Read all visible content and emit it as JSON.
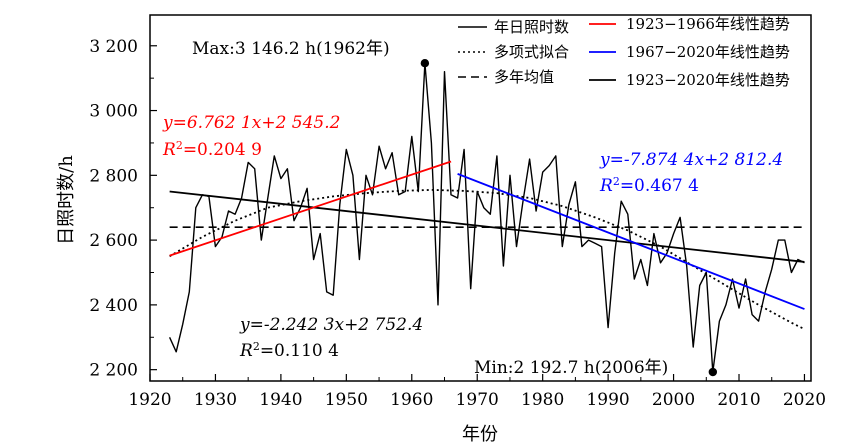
{
  "chart_data": {
    "type": "line",
    "xlabel": "年份",
    "ylabel": "日照时数/h",
    "xlim": [
      1920,
      2021
    ],
    "ylim": [
      2165,
      3295
    ],
    "x_ticks": [
      1920,
      1930,
      1940,
      1950,
      1960,
      1970,
      1980,
      1990,
      2000,
      2010,
      2020
    ],
    "x_tick_labels": [
      "1920",
      "1930",
      "1940",
      "1950",
      "1960",
      "1970",
      "1980",
      "1990",
      "2000",
      "2010",
      "2020"
    ],
    "y_ticks": [
      2200,
      2400,
      2600,
      2800,
      3000,
      3200
    ],
    "y_tick_labels": [
      "2 200",
      "2 400",
      "2 600",
      "2 800",
      "3 000",
      "3 200"
    ],
    "legend": {
      "placement": "top-right",
      "entries": [
        {
          "label": "年日照时数",
          "style": "solid",
          "color": "#000000"
        },
        {
          "label": "多项式拟合",
          "style": "dotted",
          "color": "#000000"
        },
        {
          "label": "多年均值",
          "style": "dashed",
          "color": "#000000"
        },
        {
          "label": "1923−1966年线性趋势",
          "style": "solid",
          "color": "#ff0000"
        },
        {
          "label": "1967−2020年线性趋势",
          "style": "solid",
          "color": "#0000ff"
        },
        {
          "label": "1923−2020年线性趋势",
          "style": "solid",
          "color": "#000000"
        }
      ]
    },
    "series": [
      {
        "name": "年日照时数",
        "color": "#000000",
        "x": [
          1923,
          1924,
          1925,
          1926,
          1927,
          1928,
          1929,
          1930,
          1931,
          1932,
          1933,
          1934,
          1935,
          1936,
          1937,
          1938,
          1939,
          1940,
          1941,
          1942,
          1943,
          1944,
          1945,
          1946,
          1947,
          1948,
          1949,
          1950,
          1951,
          1952,
          1953,
          1954,
          1955,
          1956,
          1957,
          1958,
          1959,
          1960,
          1961,
          1962,
          1963,
          1964,
          1965,
          1966,
          1967,
          1968,
          1969,
          1970,
          1971,
          1972,
          1973,
          1974,
          1975,
          1976,
          1977,
          1978,
          1979,
          1980,
          1981,
          1982,
          1983,
          1984,
          1985,
          1986,
          1987,
          1988,
          1989,
          1990,
          1991,
          1992,
          1993,
          1994,
          1995,
          1996,
          1997,
          1998,
          1999,
          2000,
          2001,
          2002,
          2003,
          2004,
          2005,
          2006,
          2007,
          2008,
          2009,
          2010,
          2011,
          2012,
          2013,
          2014,
          2015,
          2016,
          2017,
          2018,
          2019,
          2020
        ],
        "y": [
          2300,
          2255,
          2340,
          2440,
          2700,
          2740,
          2735,
          2580,
          2610,
          2690,
          2680,
          2730,
          2840,
          2820,
          2600,
          2730,
          2860,
          2790,
          2820,
          2660,
          2700,
          2760,
          2540,
          2620,
          2440,
          2430,
          2710,
          2880,
          2800,
          2540,
          2800,
          2740,
          2890,
          2820,
          2870,
          2740,
          2750,
          2920,
          2750,
          3146.2,
          2900,
          2400,
          3120,
          2740,
          2730,
          2880,
          2450,
          2750,
          2700,
          2680,
          2860,
          2520,
          2800,
          2580,
          2720,
          2850,
          2690,
          2810,
          2830,
          2860,
          2580,
          2710,
          2780,
          2580,
          2600,
          2590,
          2580,
          2330,
          2560,
          2720,
          2680,
          2480,
          2540,
          2460,
          2620,
          2530,
          2560,
          2620,
          2670,
          2520,
          2270,
          2460,
          2500,
          2192.7,
          2350,
          2400,
          2480,
          2390,
          2480,
          2370,
          2350,
          2440,
          2510,
          2600,
          2600,
          2500,
          2540,
          2530
        ]
      },
      {
        "name": "多项式拟合",
        "style": "dotted",
        "x": [
          1923,
          1928,
          1933,
          1938,
          1943,
          1948,
          1953,
          1958,
          1963,
          1968,
          1973,
          1978,
          1983,
          1988,
          1993,
          1998,
          2003,
          2008,
          2013,
          2018,
          2020
        ],
        "y": [
          2550,
          2610,
          2660,
          2700,
          2720,
          2735,
          2745,
          2752,
          2755,
          2752,
          2745,
          2730,
          2705,
          2670,
          2630,
          2580,
          2520,
          2460,
          2400,
          2345,
          2325
        ]
      },
      {
        "name": "多年均值",
        "style": "dashed",
        "x": [
          1923,
          2020
        ],
        "y": [
          2640,
          2640
        ]
      },
      {
        "name": "1923−1966年线性趋势",
        "color": "#ff0000",
        "slope": 6.7621,
        "intercept": 2545.2,
        "x_range": [
          1923,
          1966
        ],
        "x0": 1923
      },
      {
        "name": "1967−2020年线性趋势",
        "color": "#0000ff",
        "slope": -7.8744,
        "intercept": 2812.4,
        "x_range": [
          1967,
          2020
        ],
        "x0": 1967
      },
      {
        "name": "1923−2020年线性趋势",
        "color": "#000000",
        "slope": -2.2423,
        "intercept": 2752.4,
        "x_range": [
          1923,
          2020
        ],
        "x0": 1923
      }
    ],
    "markers": [
      {
        "x": 1962,
        "y": 3146.2
      },
      {
        "x": 2006,
        "y": 2192.7
      }
    ],
    "annotations": {
      "max_label": "Max:3 146.2 h(1962年)",
      "min_label": "Min:2 192.7 h(2006年)",
      "red_equation": "y=6.762 1x+2 545.2",
      "red_r2_prefix": "R",
      "red_r2_sup": "2",
      "red_r2_value": "=0.204 9",
      "blue_equation": "y=-7.874 4x+2 812.4",
      "blue_r2_prefix": "R",
      "blue_r2_sup": "2",
      "blue_r2_value": "=0.467 4",
      "black_equation": "y=-2.242 3x+2 752.4",
      "black_r2_prefix": "R",
      "black_r2_sup": "2",
      "black_r2_value": "=0.110 4"
    }
  }
}
